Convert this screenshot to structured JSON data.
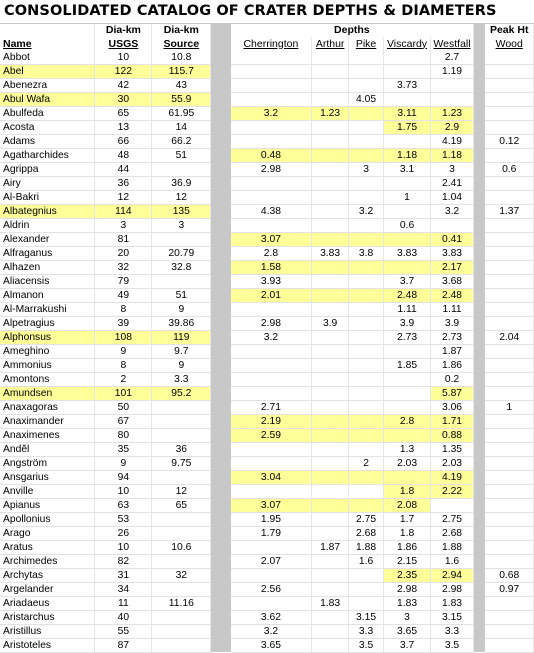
{
  "title": "CONSOLIDATED CATALOG OF CRATER DEPTHS & DIAMETERS",
  "headers": {
    "name": "Name",
    "dia_top": "Dia-km",
    "dia_usgs": "USGS",
    "dia_top2": "Dia-km",
    "dia_source": "Source",
    "depths": "Depths",
    "cherrington": "Cherrington",
    "arthur": "Arthur",
    "pike": "Pike",
    "viscardy": "Viscardy",
    "westfall": "Westfall",
    "peak_top": "Peak Ht",
    "peak_wood": "Wood"
  },
  "highlight_color": "#ffff99",
  "rows": [
    {
      "name": "Abbot",
      "usgs": "10",
      "src": "10.8",
      "ch": "",
      "ar": "",
      "pi": "",
      "vi": "",
      "we": "2.7",
      "wo": "",
      "h": false
    },
    {
      "name": "Abel",
      "usgs": "122",
      "src": "115.7",
      "ch": "",
      "ar": "",
      "pi": "",
      "vi": "",
      "we": "1.19",
      "wo": "",
      "h": true
    },
    {
      "name": "Abenezra",
      "usgs": "42",
      "src": "43",
      "ch": "",
      "ar": "",
      "pi": "",
      "vi": "3.73",
      "we": "",
      "wo": "",
      "h": false
    },
    {
      "name": "Abul Wafa",
      "usgs": "30",
      "src": "55.9",
      "ch": "",
      "ar": "",
      "pi": "4.05",
      "vi": "",
      "we": "",
      "wo": "",
      "h": true
    },
    {
      "name": "Abulfeda",
      "usgs": "65",
      "src": "61.95",
      "ch": "3.2",
      "ar": "1.23",
      "pi": "",
      "vi": "3.11",
      "we": "1.23",
      "wo": "",
      "h": false,
      "hd": true
    },
    {
      "name": "Acosta",
      "usgs": "13",
      "src": "14",
      "ch": "",
      "ar": "",
      "pi": "",
      "vi": "1.75",
      "we": "2.9",
      "wo": "",
      "h": false,
      "hv": true
    },
    {
      "name": "Adams",
      "usgs": "66",
      "src": "66.2",
      "ch": "",
      "ar": "",
      "pi": "",
      "vi": "",
      "we": "4.19",
      "wo": "0.12",
      "h": false
    },
    {
      "name": "Agatharchides",
      "usgs": "48",
      "src": "51",
      "ch": "0.48",
      "ar": "",
      "pi": "",
      "vi": "1.18",
      "we": "1.18",
      "wo": "",
      "h": false,
      "hd": true
    },
    {
      "name": "Agrippa",
      "usgs": "44",
      "src": "",
      "ch": "2.98",
      "ar": "",
      "pi": "3",
      "vi": "3.1",
      "we": "3",
      "wo": "0.6",
      "h": false
    },
    {
      "name": "Airy",
      "usgs": "36",
      "src": "36.9",
      "ch": "",
      "ar": "",
      "pi": "",
      "vi": "",
      "we": "2.41",
      "wo": "",
      "h": false
    },
    {
      "name": "Al-Bakri",
      "usgs": "12",
      "src": "12",
      "ch": "",
      "ar": "",
      "pi": "",
      "vi": "1",
      "we": "1.04",
      "wo": "",
      "h": false
    },
    {
      "name": "Albategnius",
      "usgs": "114",
      "src": "135",
      "ch": "4.38",
      "ar": "",
      "pi": "3.2",
      "vi": "",
      "we": "3.2",
      "wo": "1.37",
      "h": true
    },
    {
      "name": "Aldrin",
      "usgs": "3",
      "src": "3",
      "ch": "",
      "ar": "",
      "pi": "",
      "vi": "0.6",
      "we": "",
      "wo": "",
      "h": false
    },
    {
      "name": "Alexander",
      "usgs": "81",
      "src": "",
      "ch": "3.07",
      "ar": "",
      "pi": "",
      "vi": "",
      "we": "0.41",
      "wo": "",
      "h": false,
      "hd": true
    },
    {
      "name": "Alfraganus",
      "usgs": "20",
      "src": "20.79",
      "ch": "2.8",
      "ar": "3.83",
      "pi": "3.8",
      "vi": "3.83",
      "we": "3.83",
      "wo": "",
      "h": false
    },
    {
      "name": "Alhazen",
      "usgs": "32",
      "src": "32.8",
      "ch": "1.58",
      "ar": "",
      "pi": "",
      "vi": "",
      "we": "2.17",
      "wo": "",
      "h": false,
      "hd": true
    },
    {
      "name": "Aliacensis",
      "usgs": "79",
      "src": "",
      "ch": "3.93",
      "ar": "",
      "pi": "",
      "vi": "3.7",
      "we": "3.68",
      "wo": "",
      "h": false
    },
    {
      "name": "Almanon",
      "usgs": "49",
      "src": "51",
      "ch": "2.01",
      "ar": "",
      "pi": "",
      "vi": "2.48",
      "we": "2.48",
      "wo": "",
      "h": false,
      "hd": true
    },
    {
      "name": "Al-Marrakushi",
      "usgs": "8",
      "src": "9",
      "ch": "",
      "ar": "",
      "pi": "",
      "vi": "1.11",
      "we": "1.11",
      "wo": "",
      "h": false
    },
    {
      "name": "Alpetragius",
      "usgs": "39",
      "src": "39.86",
      "ch": "2.98",
      "ar": "3.9",
      "pi": "",
      "vi": "3.9",
      "we": "3.9",
      "wo": "",
      "h": false
    },
    {
      "name": "Alphonsus",
      "usgs": "108",
      "src": "119",
      "ch": "3.2",
      "ar": "",
      "pi": "",
      "vi": "2.73",
      "we": "2.73",
      "wo": "2.04",
      "h": true
    },
    {
      "name": "Ameghino",
      "usgs": "9",
      "src": "9.7",
      "ch": "",
      "ar": "",
      "pi": "",
      "vi": "",
      "we": "1.87",
      "wo": "",
      "h": false
    },
    {
      "name": "Ammonius",
      "usgs": "8",
      "src": "9",
      "ch": "",
      "ar": "",
      "pi": "",
      "vi": "1.85",
      "we": "1.86",
      "wo": "",
      "h": false
    },
    {
      "name": "Amontons",
      "usgs": "2",
      "src": "3.3",
      "ch": "",
      "ar": "",
      "pi": "",
      "vi": "",
      "we": "0.2",
      "wo": "",
      "h": false
    },
    {
      "name": "Amundsen",
      "usgs": "101",
      "src": "95.2",
      "ch": "",
      "ar": "",
      "pi": "",
      "vi": "",
      "we": "5.87",
      "wo": "",
      "h": true,
      "hw": true
    },
    {
      "name": "Anaxagoras",
      "usgs": "50",
      "src": "",
      "ch": "2.71",
      "ar": "",
      "pi": "",
      "vi": "",
      "we": "3.06",
      "wo": "1",
      "h": false
    },
    {
      "name": "Anaximander",
      "usgs": "67",
      "src": "",
      "ch": "2.19",
      "ar": "",
      "pi": "",
      "vi": "2.8",
      "we": "1.71",
      "wo": "",
      "h": false,
      "hd": true
    },
    {
      "name": "Anaximenes",
      "usgs": "80",
      "src": "",
      "ch": "2.59",
      "ar": "",
      "pi": "",
      "vi": "",
      "we": "0.88",
      "wo": "",
      "h": false,
      "hd": true
    },
    {
      "name": "Andĕl",
      "usgs": "35",
      "src": "36",
      "ch": "",
      "ar": "",
      "pi": "",
      "vi": "1.3",
      "we": "1.35",
      "wo": "",
      "h": false
    },
    {
      "name": "Angström",
      "usgs": "9",
      "src": "9.75",
      "ch": "",
      "ar": "",
      "pi": "2",
      "vi": "2.03",
      "we": "2.03",
      "wo": "",
      "h": false
    },
    {
      "name": "Ansgarius",
      "usgs": "94",
      "src": "",
      "ch": "3.04",
      "ar": "",
      "pi": "",
      "vi": "",
      "we": "4.19",
      "wo": "",
      "h": false,
      "hd": true
    },
    {
      "name": "Anville",
      "usgs": "10",
      "src": "12",
      "ch": "",
      "ar": "",
      "pi": "",
      "vi": "1.8",
      "we": "2.22",
      "wo": "",
      "h": false,
      "hv": true
    },
    {
      "name": "Apianus",
      "usgs": "63",
      "src": "65",
      "ch": "3.07",
      "ar": "",
      "pi": "",
      "vi": "2.08",
      "we": "",
      "wo": "",
      "h": false,
      "hcv": true
    },
    {
      "name": "Apollonius",
      "usgs": "53",
      "src": "",
      "ch": "1.95",
      "ar": "",
      "pi": "2.75",
      "vi": "1.7",
      "we": "2.75",
      "wo": "",
      "h": false
    },
    {
      "name": "Arago",
      "usgs": "26",
      "src": "",
      "ch": "1.79",
      "ar": "",
      "pi": "2.68",
      "vi": "1.8",
      "we": "2.68",
      "wo": "",
      "h": false
    },
    {
      "name": "Aratus",
      "usgs": "10",
      "src": "10.6",
      "ch": "",
      "ar": "1.87",
      "pi": "1.88",
      "vi": "1.86",
      "we": "1.88",
      "wo": "",
      "h": false
    },
    {
      "name": "Archimedes",
      "usgs": "82",
      "src": "",
      "ch": "2.07",
      "ar": "",
      "pi": "1.6",
      "vi": "2.15",
      "we": "1.6",
      "wo": "",
      "h": false
    },
    {
      "name": "Archytas",
      "usgs": "31",
      "src": "32",
      "ch": "",
      "ar": "",
      "pi": "",
      "vi": "2.35",
      "we": "2.94",
      "wo": "0.68",
      "h": false,
      "hv": true
    },
    {
      "name": "Argelander",
      "usgs": "34",
      "src": "",
      "ch": "2.56",
      "ar": "",
      "pi": "",
      "vi": "2.98",
      "we": "2.98",
      "wo": "0.97",
      "h": false
    },
    {
      "name": "Ariadaeus",
      "usgs": "11",
      "src": "11.16",
      "ch": "",
      "ar": "1.83",
      "pi": "",
      "vi": "1.83",
      "we": "1.83",
      "wo": "",
      "h": false
    },
    {
      "name": "Aristarchus",
      "usgs": "40",
      "src": "",
      "ch": "3.62",
      "ar": "",
      "pi": "3.15",
      "vi": "3",
      "we": "3.15",
      "wo": "",
      "h": false
    },
    {
      "name": "Aristillus",
      "usgs": "55",
      "src": "",
      "ch": "3.2",
      "ar": "",
      "pi": "3.3",
      "vi": "3.65",
      "we": "3.3",
      "wo": "",
      "h": false
    },
    {
      "name": "Aristoteles",
      "usgs": "87",
      "src": "",
      "ch": "3.65",
      "ar": "",
      "pi": "3.5",
      "vi": "3.7",
      "we": "3.5",
      "wo": "",
      "h": false
    }
  ]
}
